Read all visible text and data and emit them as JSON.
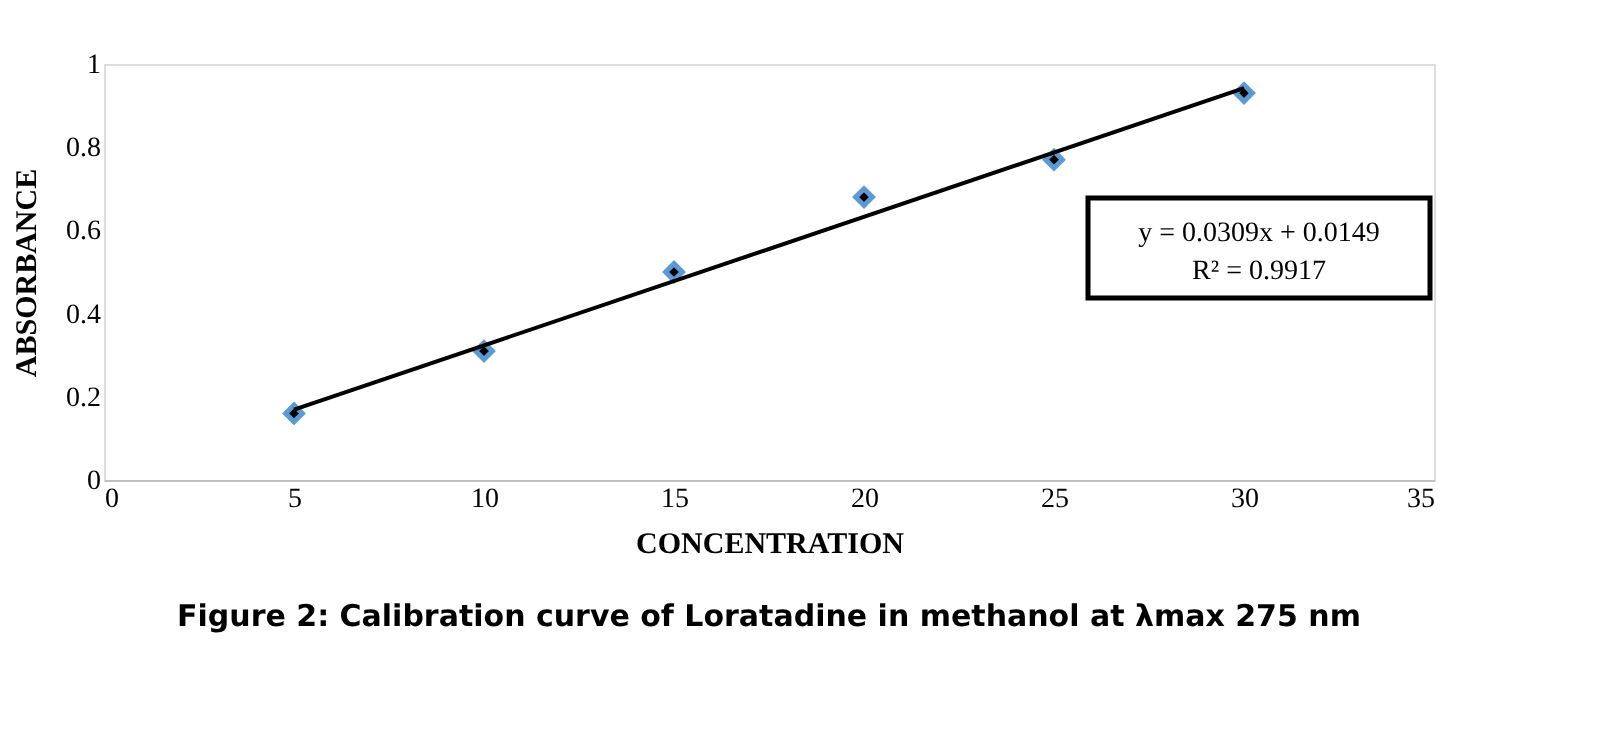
{
  "chart_data": {
    "type": "scatter",
    "title": "Figure 2: Calibration curve of Loratadine in methanol at λmax 275 nm",
    "xlabel": "CONCENTRATION",
    "ylabel": "ABSORBANCE",
    "xlim": [
      0,
      35
    ],
    "xticks": [
      0,
      5,
      10,
      15,
      20,
      25,
      30,
      35
    ],
    "ylim": [
      0,
      1
    ],
    "yticks": [
      0,
      0.2,
      0.4,
      0.6,
      0.8,
      1
    ],
    "grid": false,
    "legend": false,
    "marker": "diamond",
    "series": [
      {
        "color": "#5b9bd5",
        "x": [
          5,
          10,
          15,
          20,
          25,
          30
        ],
        "values": [
          0.16,
          0.31,
          0.5,
          0.68,
          0.77,
          0.93
        ]
      },
      {
        "type": "line",
        "color": "#000000",
        "line_style": "solid",
        "marker": "none",
        "x": [
          5,
          30
        ],
        "values": [
          0.169,
          0.942
        ]
      }
    ],
    "annotations": [
      "y = 0.0309x + 0.0149",
      "R² = 0.9917"
    ]
  }
}
